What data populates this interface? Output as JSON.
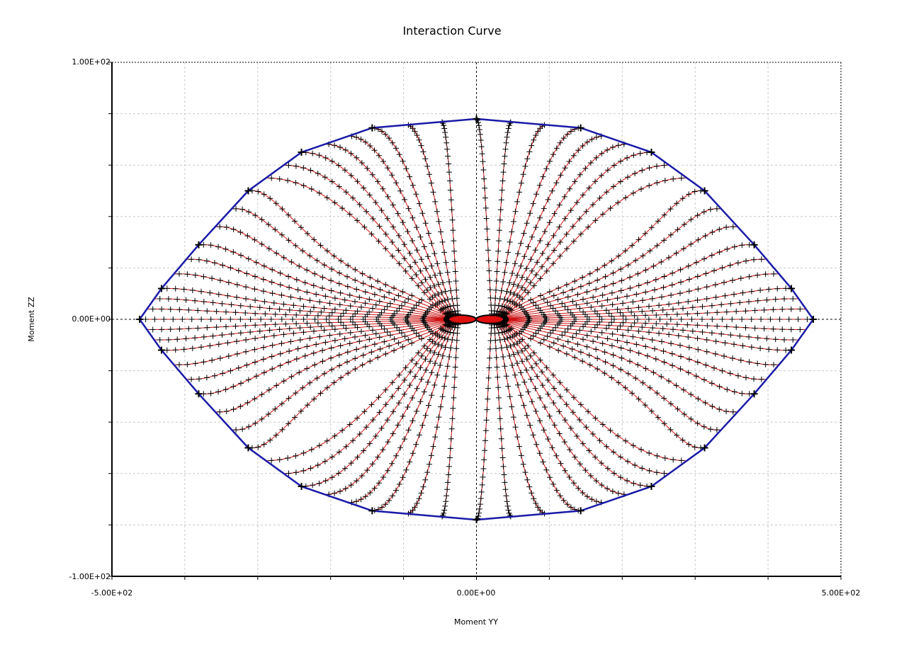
{
  "chart_data": {
    "type": "scatter",
    "title": "Interaction Curve",
    "xlabel": "Moment YY",
    "ylabel": "Moment ZZ",
    "xlim": [
      -500,
      500
    ],
    "ylim": [
      -100,
      100
    ],
    "x_tick_labels": [
      "-5.00E+02",
      "0.00E+00",
      "5.00E+02"
    ],
    "y_tick_labels": [
      "1.00E+02",
      "0.00E+00",
      "-1.00E+02"
    ],
    "grid": true,
    "legend": "none",
    "colors": {
      "envelope": "#1a1aa8",
      "curves": "#cc1010",
      "markers": "#000000"
    },
    "series": [
      {
        "role": "envelope",
        "points": [
          [
            0,
            78
          ],
          [
            143,
            74.5
          ],
          [
            240,
            65
          ],
          [
            313,
            50
          ],
          [
            381,
            29
          ],
          [
            432,
            12
          ],
          [
            462,
            0
          ],
          [
            432,
            -12
          ],
          [
            381,
            -29
          ],
          [
            313,
            -50
          ],
          [
            240,
            -65
          ],
          [
            143,
            -74.5
          ],
          [
            0,
            -78
          ],
          [
            -143,
            -74.5
          ],
          [
            -240,
            -65
          ],
          [
            -313,
            -50
          ],
          [
            -381,
            -29
          ],
          [
            -432,
            -12
          ],
          [
            -462,
            0
          ],
          [
            -432,
            12
          ],
          [
            -381,
            29
          ],
          [
            -313,
            50
          ],
          [
            -240,
            65
          ],
          [
            -143,
            74.5
          ],
          [
            0,
            78
          ]
        ]
      }
    ]
  }
}
